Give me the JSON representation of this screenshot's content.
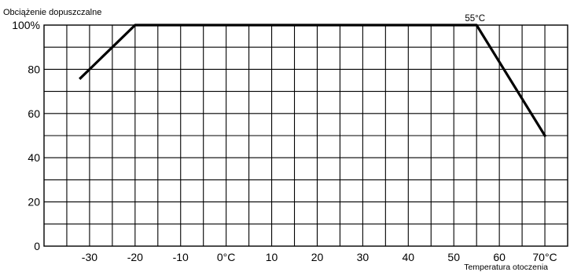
{
  "chart_data": {
    "type": "line",
    "title": "Obciążenie dopuszczalne",
    "xlabel": "Temperatura otoczenia",
    "ylabel": "",
    "xlim": [
      -40,
      75
    ],
    "ylim": [
      0,
      100
    ],
    "x_ticks": [
      {
        "value": -30,
        "label": "-30"
      },
      {
        "value": -20,
        "label": "-20"
      },
      {
        "value": -10,
        "label": "-10"
      },
      {
        "value": 0,
        "label": "0°C"
      },
      {
        "value": 10,
        "label": "10"
      },
      {
        "value": 20,
        "label": "20"
      },
      {
        "value": 30,
        "label": "30"
      },
      {
        "value": 40,
        "label": "40"
      },
      {
        "value": 50,
        "label": "50"
      },
      {
        "value": 60,
        "label": "60"
      },
      {
        "value": 70,
        "label": "70°C"
      }
    ],
    "y_ticks": [
      {
        "value": 0,
        "label": "0"
      },
      {
        "value": 20,
        "label": "20"
      },
      {
        "value": 40,
        "label": "40"
      },
      {
        "value": 60,
        "label": "60"
      },
      {
        "value": 80,
        "label": "80"
      },
      {
        "value": 100,
        "label": "100%"
      }
    ],
    "x_grid_step": 5,
    "y_grid_step": 10,
    "grid": true,
    "series": [
      {
        "x": [
          -32,
          -23,
          -20,
          55,
          70
        ],
        "y": [
          76,
          94,
          100,
          100,
          50
        ]
      }
    ],
    "annotations": [
      {
        "text": "55°C",
        "x": 55,
        "y": 100
      }
    ]
  }
}
